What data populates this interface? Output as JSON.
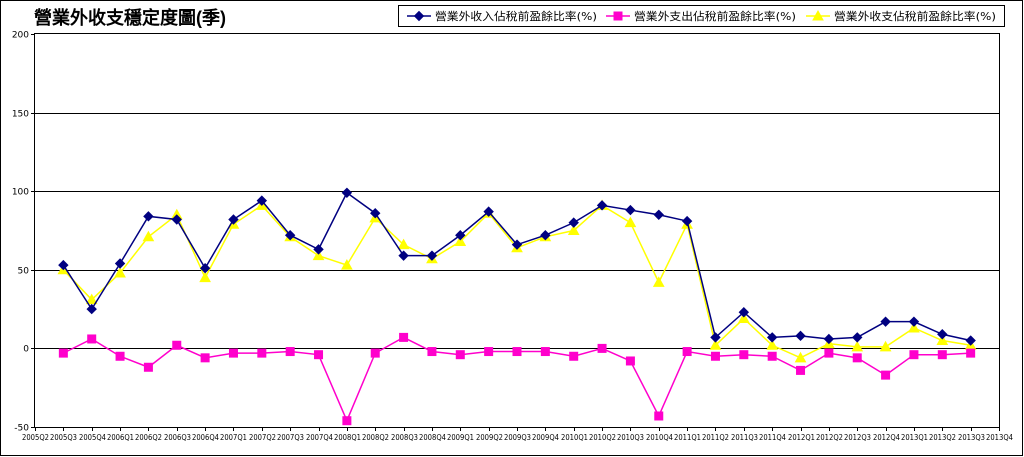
{
  "chart_data": {
    "type": "line",
    "title": "營業外收支穩定度圖(季)",
    "ylim": [
      -50,
      200
    ],
    "yticks": [
      -50,
      0,
      50,
      100,
      150,
      200
    ],
    "grid": true,
    "legend_position": "top-right",
    "categories": [
      "2005Q2",
      "2005Q3",
      "2005Q4",
      "2006Q1",
      "2006Q2",
      "2006Q3",
      "2006Q4",
      "2007Q1",
      "2007Q2",
      "2007Q3",
      "2007Q4",
      "2008Q1",
      "2008Q2",
      "2008Q3",
      "2008Q4",
      "2009Q1",
      "2009Q2",
      "2009Q3",
      "2009Q4",
      "2010Q1",
      "2010Q2",
      "2010Q3",
      "2010Q4",
      "2011Q1",
      "2011Q2",
      "2011Q3",
      "2011Q4",
      "2012Q1",
      "2012Q2",
      "2012Q3",
      "2012Q4",
      "2013Q1",
      "2013Q2",
      "2013Q3",
      "2013Q4"
    ],
    "series": [
      {
        "name": "營業外收入佔稅前盈餘比率(%)",
        "color": "#000080",
        "marker": "diamond",
        "values": [
          null,
          53,
          25,
          54,
          84,
          82,
          51,
          82,
          94,
          72,
          63,
          99,
          86,
          59,
          59,
          72,
          87,
          66,
          72,
          80,
          91,
          88,
          85,
          81,
          7,
          23,
          7,
          8,
          6,
          7,
          17,
          17,
          9,
          5,
          null
        ]
      },
      {
        "name": "營業外支出佔稅前盈餘比率(%)",
        "color": "#FF00CC",
        "marker": "square",
        "values": [
          null,
          -3,
          6,
          -5,
          -12,
          2,
          -6,
          -3,
          -3,
          -2,
          -4,
          -46,
          -3,
          7,
          -2,
          -4,
          -2,
          -2,
          -2,
          -5,
          0,
          -8,
          -43,
          -2,
          -5,
          -4,
          -5,
          -14,
          -3,
          -6,
          -17,
          -4,
          -4,
          -3,
          null
        ]
      },
      {
        "name": "營業外收支佔稅前盈餘比率(%)",
        "color": "#FFFF00",
        "marker": "triangle",
        "values": [
          null,
          50,
          31,
          48,
          71,
          85,
          45,
          79,
          91,
          71,
          59,
          53,
          83,
          66,
          57,
          68,
          86,
          64,
          71,
          75,
          91,
          80,
          42,
          79,
          2,
          19,
          2,
          -6,
          3,
          1,
          1,
          13,
          5,
          2,
          null
        ]
      }
    ]
  }
}
